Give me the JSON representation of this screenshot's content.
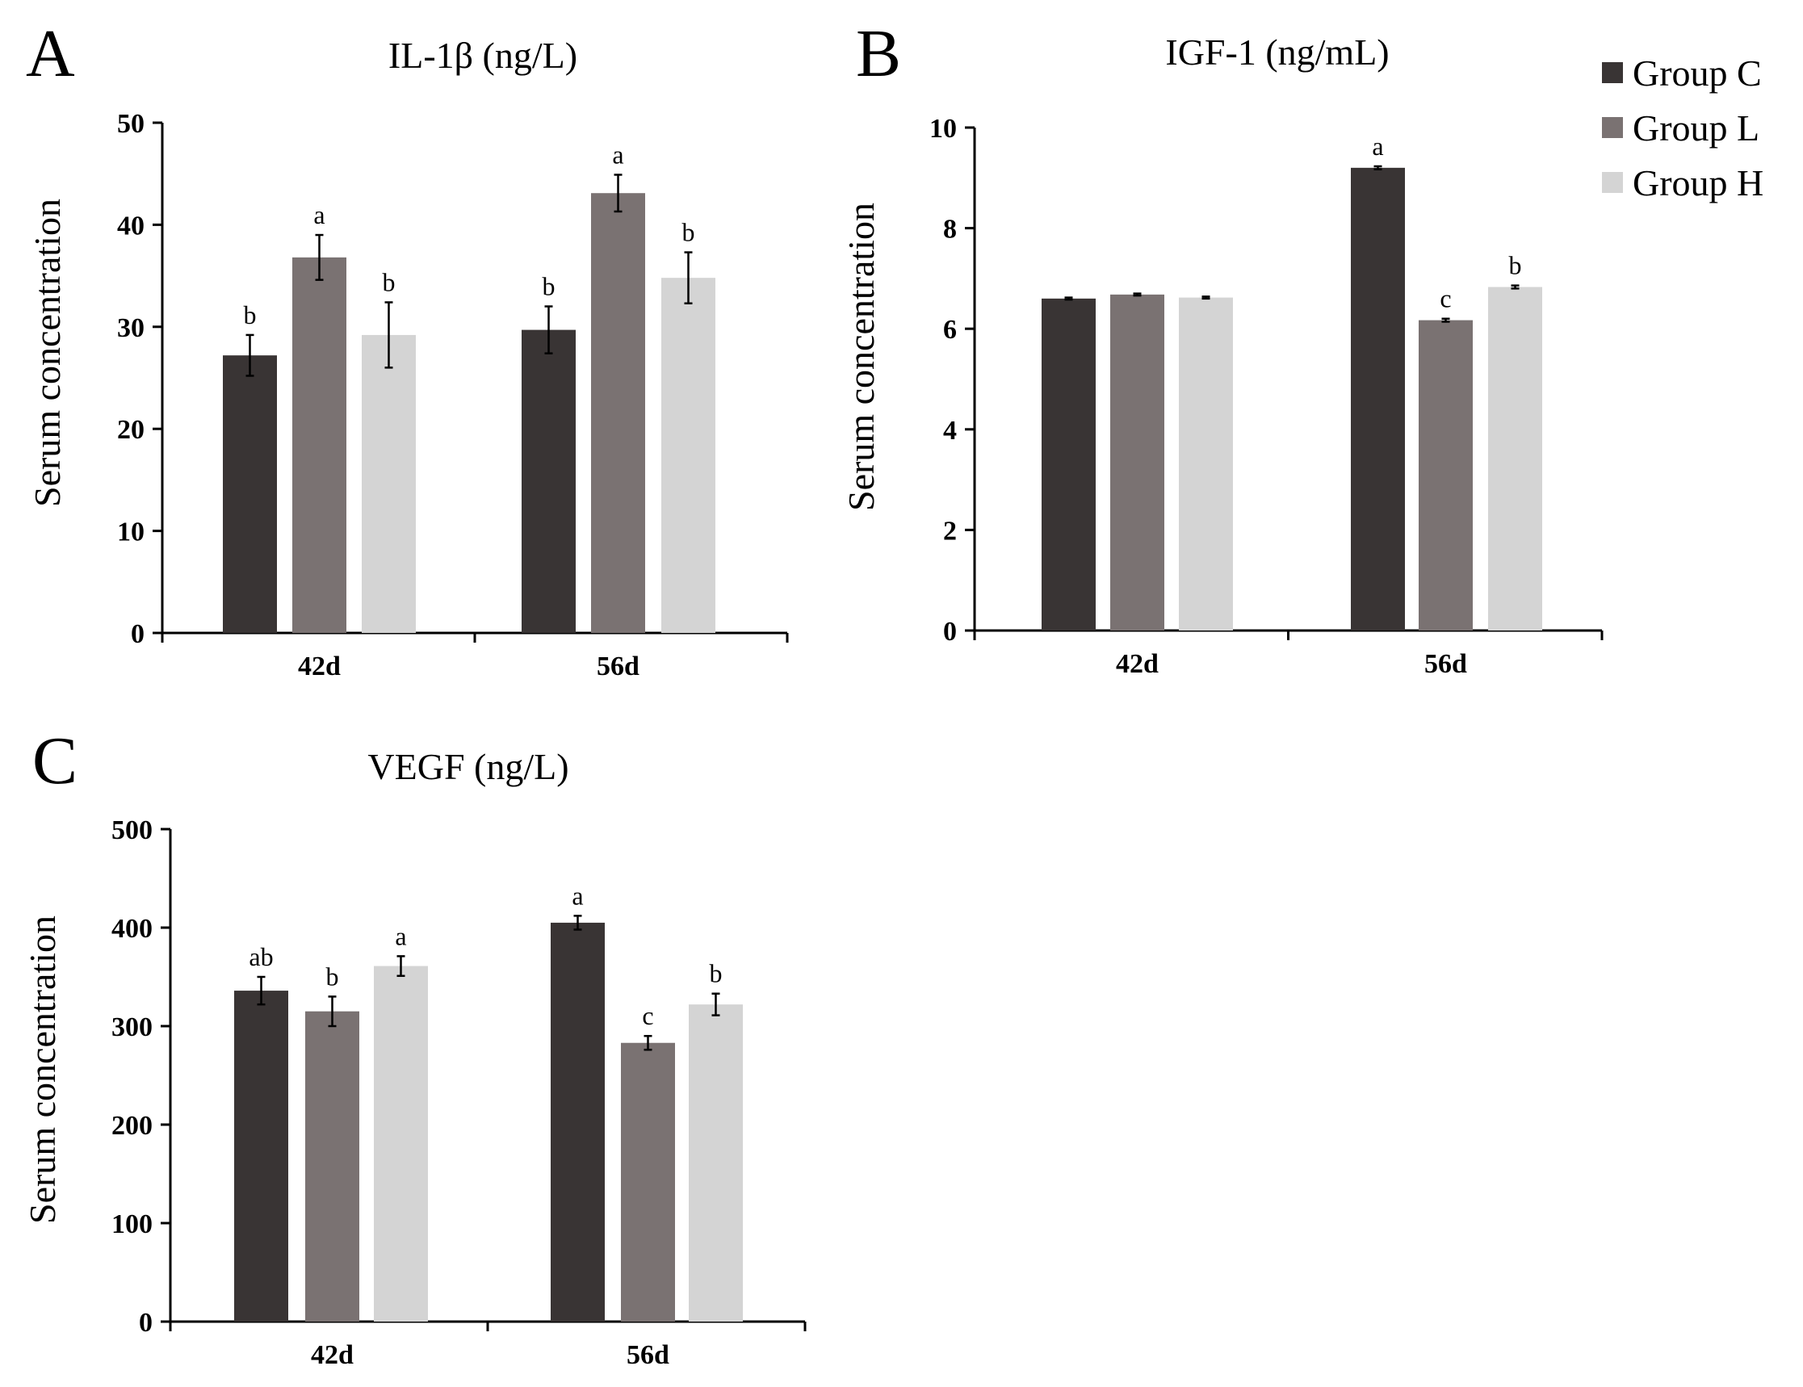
{
  "colors": {
    "group_c": "#393434",
    "group_l": "#7a7272",
    "group_h": "#d4d4d4",
    "axis": "#000000"
  },
  "legend": {
    "items": [
      {
        "label": "Group C",
        "color": "#393434"
      },
      {
        "label": "Group L",
        "color": "#7a7272"
      },
      {
        "label": "Group H",
        "color": "#d4d4d4"
      }
    ]
  },
  "chart_data": [
    {
      "type": "bar",
      "panel_label": "A",
      "title": "IL-1β (ng/L)",
      "ylabel": "Serum concentration",
      "xlabel": "",
      "categories": [
        "42d",
        "56d"
      ],
      "ylim": [
        0,
        50
      ],
      "yticks": [
        0,
        10,
        20,
        30,
        40,
        50
      ],
      "series": [
        {
          "name": "Group C",
          "values": [
            27.2,
            29.7
          ],
          "errors": [
            2.0,
            2.3
          ],
          "letters": [
            "b",
            "b"
          ]
        },
        {
          "name": "Group L",
          "values": [
            36.8,
            43.1
          ],
          "errors": [
            2.2,
            1.8
          ],
          "letters": [
            "a",
            "a"
          ]
        },
        {
          "name": "Group H",
          "values": [
            29.2,
            34.8
          ],
          "errors": [
            3.2,
            2.5
          ],
          "letters": [
            "b",
            "b"
          ]
        }
      ]
    },
    {
      "type": "bar",
      "panel_label": "B",
      "title": "IGF-1 (ng/mL)",
      "ylabel": "Serum concentration",
      "xlabel": "",
      "categories": [
        "42d",
        "56d"
      ],
      "ylim": [
        0,
        10
      ],
      "yticks": [
        0,
        2,
        4,
        6,
        8,
        10
      ],
      "series": [
        {
          "name": "Group C",
          "values": [
            6.6,
            9.2
          ],
          "errors": [
            0.02,
            0.03
          ],
          "letters": [
            "",
            "a"
          ]
        },
        {
          "name": "Group L",
          "values": [
            6.68,
            6.17
          ],
          "errors": [
            0.02,
            0.03
          ],
          "letters": [
            "",
            "c"
          ]
        },
        {
          "name": "Group H",
          "values": [
            6.62,
            6.83
          ],
          "errors": [
            0.02,
            0.03
          ],
          "letters": [
            "",
            "b"
          ]
        }
      ]
    },
    {
      "type": "bar",
      "panel_label": "C",
      "title": "VEGF (ng/L)",
      "ylabel": "Serum concentration",
      "xlabel": "",
      "categories": [
        "42d",
        "56d"
      ],
      "ylim": [
        0,
        500
      ],
      "yticks": [
        0,
        100,
        200,
        300,
        400,
        500
      ],
      "series": [
        {
          "name": "Group C",
          "values": [
            336,
            405
          ],
          "errors": [
            14,
            7
          ],
          "letters": [
            "ab",
            "a"
          ]
        },
        {
          "name": "Group L",
          "values": [
            315,
            283
          ],
          "errors": [
            15,
            7
          ],
          "letters": [
            "b",
            "c"
          ]
        },
        {
          "name": "Group H",
          "values": [
            361,
            322
          ],
          "errors": [
            10,
            11
          ],
          "letters": [
            "a",
            "b"
          ]
        }
      ]
    }
  ]
}
